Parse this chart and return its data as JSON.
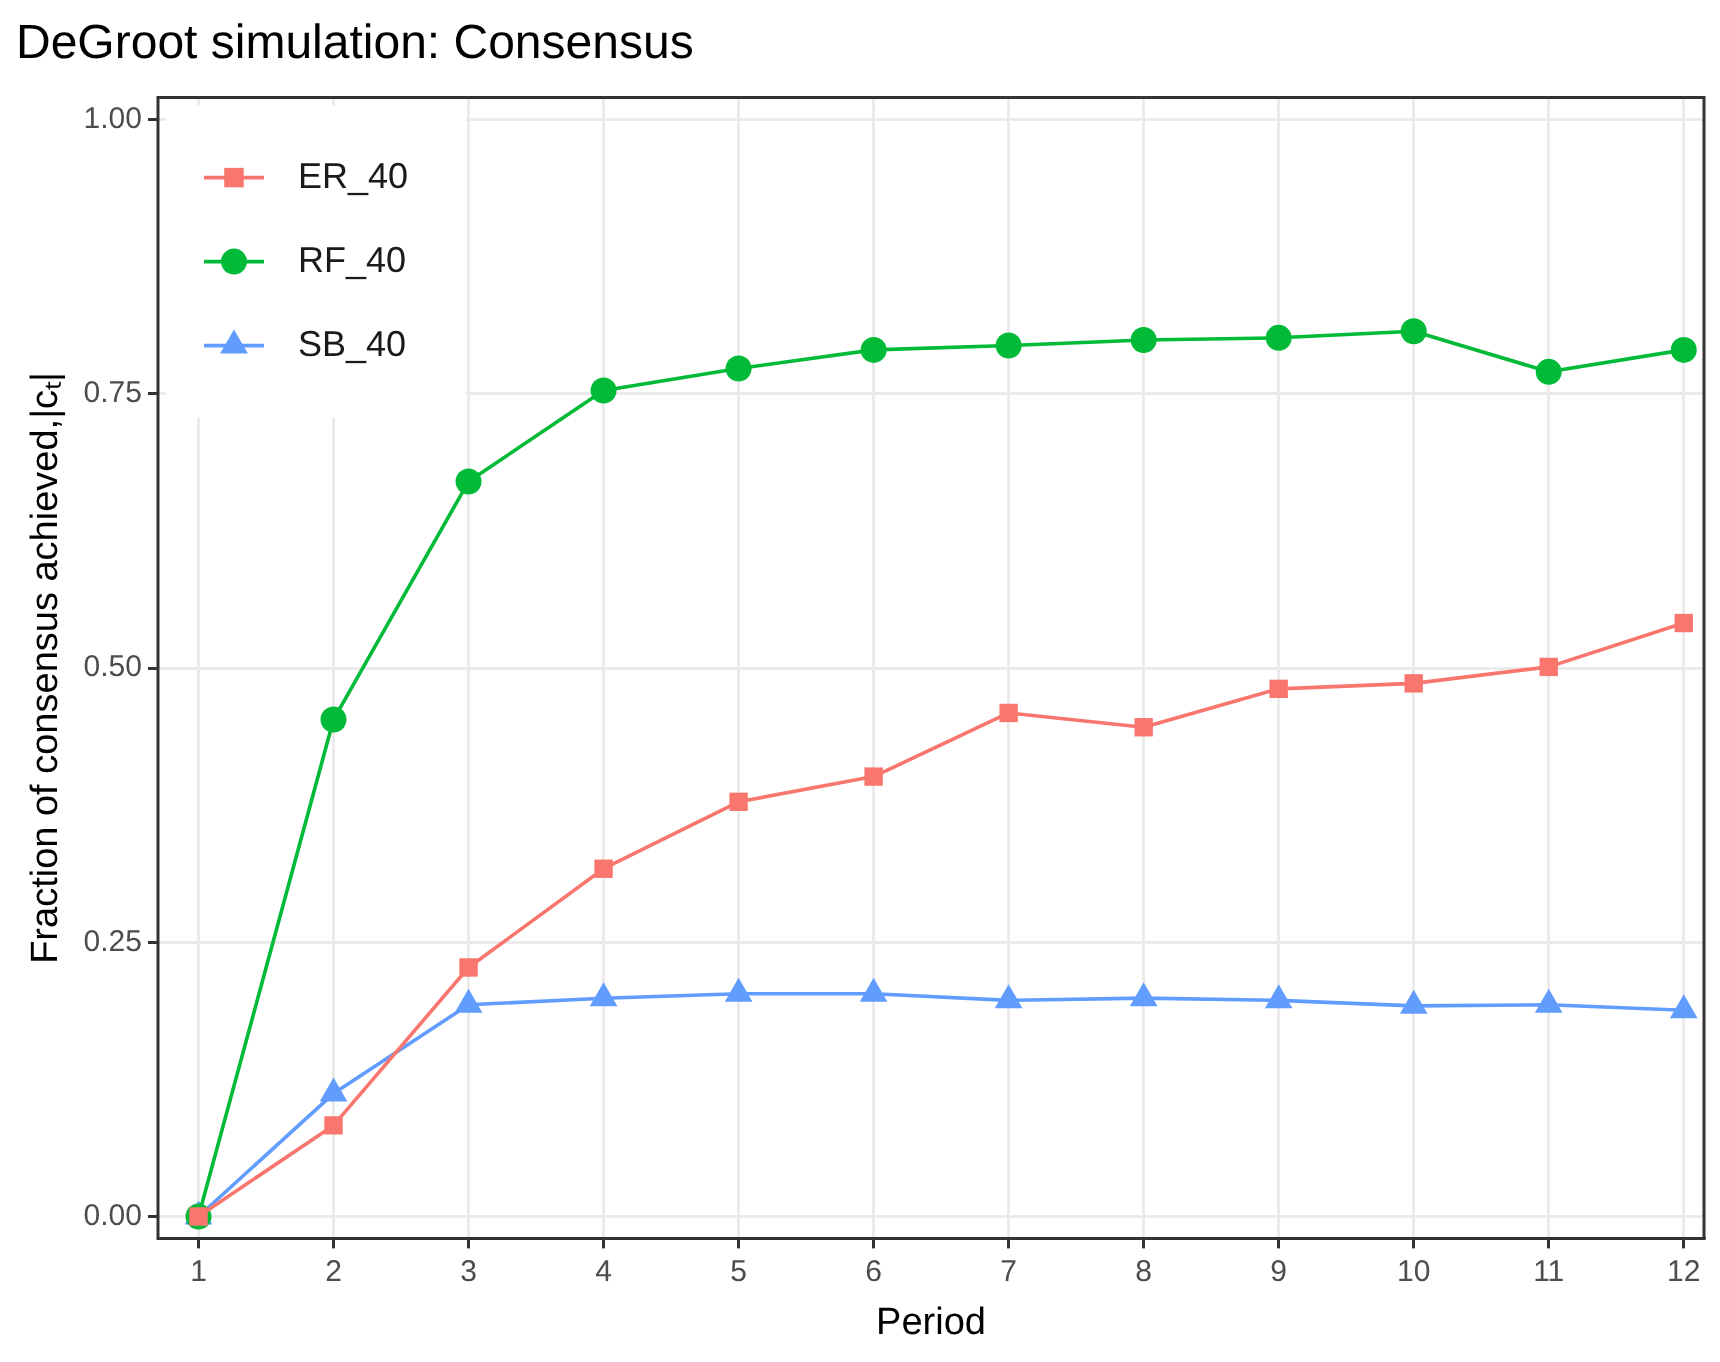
{
  "chart_data": {
    "type": "line",
    "title": "DeGroot simulation: Consensus",
    "xlabel": "Period",
    "ylabel": "Fraction of consensus achieved,|cₜ|",
    "x": [
      1,
      2,
      3,
      4,
      5,
      6,
      7,
      8,
      9,
      10,
      11,
      12
    ],
    "series": [
      {
        "name": "ER_40",
        "color": "#f8766d",
        "marker": "square",
        "values": [
          0,
          0.083,
          0.227,
          0.317,
          0.378,
          0.401,
          0.459,
          0.446,
          0.481,
          0.486,
          0.501,
          0.541
        ]
      },
      {
        "name": "RF_40",
        "color": "#00ba38",
        "marker": "circle",
        "values": [
          0,
          0.453,
          0.67,
          0.753,
          0.773,
          0.79,
          0.794,
          0.799,
          0.801,
          0.807,
          0.77,
          0.79
        ]
      },
      {
        "name": "SB_40",
        "color": "#619cff",
        "marker": "triangle",
        "values": [
          0,
          0.112,
          0.193,
          0.199,
          0.203,
          0.203,
          0.197,
          0.199,
          0.197,
          0.192,
          0.193,
          0.188
        ]
      }
    ],
    "xlim": [
      0.7,
      12.15
    ],
    "xticks": [
      1,
      2,
      3,
      4,
      5,
      6,
      7,
      8,
      9,
      10,
      11,
      12
    ],
    "ylim": [
      -0.02,
      1.02
    ],
    "yticks": [
      {
        "value": 0,
        "label": "0.00"
      },
      {
        "value": 0.25,
        "label": "0.25"
      },
      {
        "value": 0.5,
        "label": "0.50"
      },
      {
        "value": 0.75,
        "label": "0.75"
      },
      {
        "value": 1,
        "label": "1.00"
      }
    ],
    "grid": true,
    "legend": "top left",
    "line_style": "solid"
  }
}
